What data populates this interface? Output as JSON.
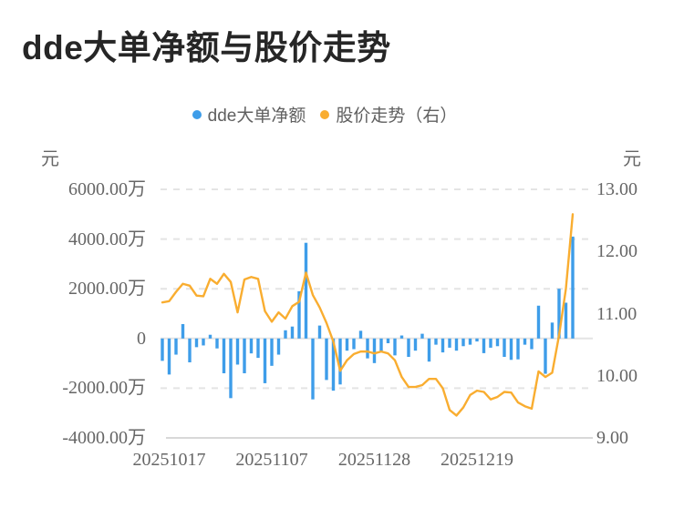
{
  "title": "dde大单净额与股价走势",
  "legend": {
    "items": [
      {
        "label": "dde大单净额",
        "color": "#3E9DE9",
        "marker": "circle"
      },
      {
        "label": "股价走势（右）",
        "color": "#F9AD30",
        "marker": "circle"
      }
    ]
  },
  "left_axis": {
    "unit": "元",
    "ticks": [
      "6000.00万",
      "4000.00万",
      "2000.00万",
      "0",
      "-2000.00万",
      "-4000.00万"
    ]
  },
  "right_axis": {
    "unit": "元",
    "ticks": [
      "13.00",
      "12.00",
      "11.00",
      "10.00",
      "9.00"
    ]
  },
  "x_axis": {
    "ticks": [
      "20251017",
      "20251107",
      "20251128",
      "20251219"
    ],
    "tick_indices": [
      1,
      16,
      31,
      46
    ]
  },
  "chart_data": {
    "type": "combo",
    "point_count": 61,
    "x_tick_labels": [
      "20251017",
      "20251107",
      "20251128",
      "20251219"
    ],
    "x_tick_indices": [
      1,
      16,
      31,
      46
    ],
    "left_axis_range_wan": [
      -4000,
      6000
    ],
    "right_axis_range_yuan": [
      9,
      13
    ],
    "grid": "horizontal-dashed",
    "legend_position": "top-center",
    "series": [
      {
        "name": "dde大单净额",
        "type": "bar",
        "y_axis": "left",
        "unit": "万元",
        "color": "#3E9DE9",
        "values": [
          -900,
          -1450,
          -650,
          580,
          -960,
          -350,
          -280,
          150,
          -400,
          -1400,
          -2400,
          -1050,
          -1400,
          -600,
          -780,
          -1800,
          -1100,
          -650,
          330,
          480,
          1900,
          3850,
          -2450,
          520,
          -1670,
          -2100,
          -1850,
          -490,
          -430,
          310,
          -800,
          -990,
          -560,
          -190,
          -680,
          120,
          -740,
          -490,
          190,
          -930,
          -250,
          -560,
          -370,
          -490,
          -310,
          -250,
          -120,
          -590,
          -370,
          -310,
          -740,
          -860,
          -840,
          -250,
          -430,
          1320,
          -1420,
          640,
          2000,
          1440,
          4100
        ]
      },
      {
        "name": "股价走势（右）",
        "type": "line",
        "y_axis": "right",
        "unit": "元",
        "color": "#F9AD30",
        "values": [
          11.18,
          11.2,
          11.35,
          11.48,
          11.45,
          11.29,
          11.28,
          11.56,
          11.48,
          11.64,
          11.51,
          11.02,
          11.55,
          11.59,
          11.56,
          11.04,
          10.87,
          11.02,
          10.92,
          11.12,
          11.19,
          11.66,
          11.3,
          11.1,
          10.85,
          10.55,
          10.08,
          10.25,
          10.35,
          10.39,
          10.39,
          10.36,
          10.39,
          10.36,
          10.25,
          9.98,
          9.82,
          9.82,
          9.85,
          9.95,
          9.95,
          9.8,
          9.45,
          9.36,
          9.49,
          9.69,
          9.76,
          9.74,
          9.62,
          9.66,
          9.74,
          9.73,
          9.57,
          9.51,
          9.47,
          10.07,
          9.98,
          10.05,
          10.65,
          11.4,
          12.6
        ]
      }
    ]
  },
  "colors": {
    "bar": "#3E9DE9",
    "line": "#F9AD30",
    "axis_text": "#666666",
    "title": "#262626",
    "gridline": "#E4E4E4",
    "zero_line": "#E4E4E4",
    "axis_line": "#CCCCCC",
    "background": "#FFFFFF"
  }
}
